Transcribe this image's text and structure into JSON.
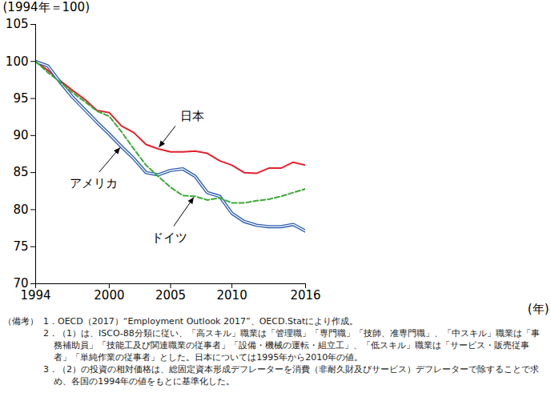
{
  "chart_data": {
    "type": "line",
    "y_label": "(1994年＝100)",
    "x_label": "(年)",
    "x": [
      1994,
      1995,
      1996,
      1997,
      1998,
      1999,
      2000,
      2001,
      2002,
      2003,
      2004,
      2005,
      2006,
      2007,
      2008,
      2009,
      2010,
      2011,
      2012,
      2013,
      2014,
      2015,
      2016
    ],
    "series": [
      {
        "name": "日本",
        "color": "#e5202e",
        "line_style": "solid",
        "values": [
          100,
          98.8,
          97.4,
          96.1,
          94.9,
          93.4,
          93.1,
          91.3,
          90.4,
          88.8,
          88.2,
          87.8,
          87.8,
          87.9,
          87.6,
          86.6,
          86.0,
          85.0,
          84.9,
          85.6,
          85.6,
          86.4,
          86.0
        ]
      },
      {
        "name": "アメリカ",
        "color": "#2f5fae",
        "line_style": "double",
        "values": [
          100,
          99.4,
          97.2,
          95.2,
          93.5,
          91.8,
          90.2,
          88.5,
          86.9,
          85.0,
          84.7,
          85.3,
          85.5,
          84.5,
          82.3,
          81.8,
          79.5,
          78.4,
          77.9,
          77.7,
          77.7,
          78.0,
          77.1
        ]
      },
      {
        "name": "ドイツ",
        "color": "#3aaa35",
        "line_style": "dashed",
        "values": [
          100,
          98.5,
          97.2,
          95.8,
          94.6,
          93.3,
          92.6,
          90.5,
          88.2,
          86.0,
          84.5,
          83.0,
          81.9,
          81.8,
          81.3,
          81.6,
          80.9,
          80.9,
          81.2,
          81.4,
          81.8,
          82.3,
          82.8
        ]
      }
    ],
    "annotations": [
      {
        "text": "日本",
        "series": "日本",
        "x": 2004
      },
      {
        "text": "アメリカ",
        "series": "アメリカ",
        "x": 2001
      },
      {
        "text": "ドイツ",
        "series": "ドイツ",
        "x": 2007
      }
    ],
    "xlim": [
      1994,
      2016
    ],
    "xticks": [
      1994,
      2000,
      2005,
      2010,
      2016
    ],
    "ylim": [
      70,
      105
    ],
    "yticks": [
      70,
      75,
      80,
      85,
      90,
      95,
      100,
      105
    ],
    "grid": false,
    "caption": {
      "label": "（備考）",
      "items": [
        "1．OECD（2017）“Employment Outlook 2017”、OECD.Statにより作成。",
        "2．（1）は、ISCO-88分類に従い、「高スキル」職業は「管理職」「専門職」「技師、准専門職」、「中スキル」職業は「事務補助員」「技能工及び関連職業の従事者」「設備・機械の運転・組立工」、「低スキル」職業は「サービス・販売従事者」「単純作業の従事者」とした。日本については1995年から2010年の値。",
        "3．（2）の投資の相対価格は、総固定資本形成デフレーターを消費（非耐久財及びサービス）デフレーターで除することで求め、各国の1994年の値をもとに基準化した。"
      ]
    }
  }
}
